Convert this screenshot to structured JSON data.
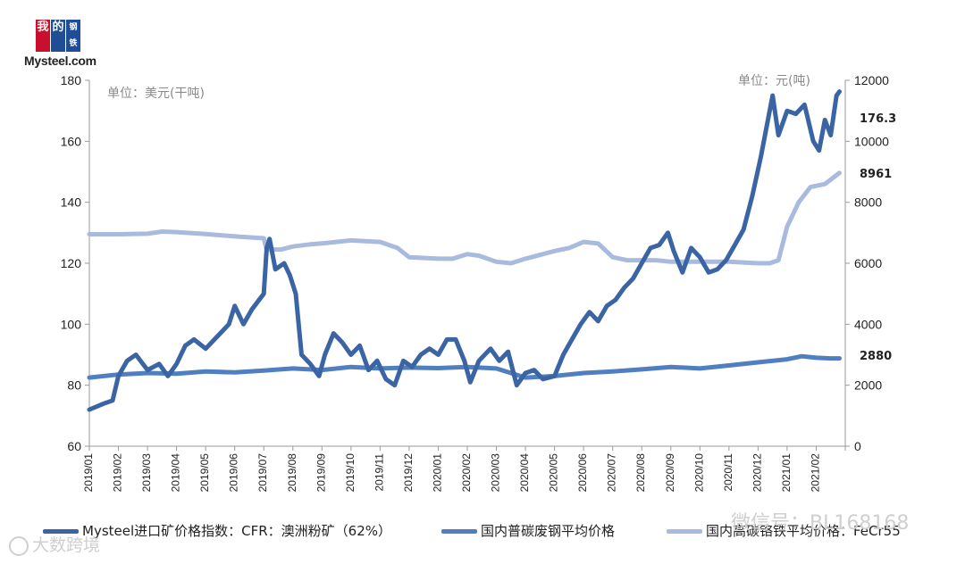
{
  "logo": {
    "chars": [
      "我",
      "的",
      "钢铁"
    ],
    "brand": "Mysteel.com"
  },
  "units": {
    "left": "单位：美元(干吨)",
    "right": "单位：元(吨)"
  },
  "end_labels": {
    "iron_ore": "176.3",
    "scrap": "2880",
    "high_carbon": "8961"
  },
  "legend": [
    {
      "label": "Mysteel进口矿价格指数：CFR：澳洲粉矿（62%）",
      "color": "#3a64a3"
    },
    {
      "label": "国内普碳废钢平均价格",
      "color": "#4f7fc1"
    },
    {
      "label": "国内高碳铬铁平均价格：FeCr55",
      "color": "#a9badf"
    }
  ],
  "watermarks": {
    "right": "微信号：BL168168",
    "left": "大数跨境"
  },
  "chart_data": {
    "type": "line",
    "x": [
      "2019/01",
      "2019/02",
      "2019/03",
      "2019/04",
      "2019/05",
      "2019/06",
      "2019/07",
      "2019/08",
      "2019/09",
      "2019/10",
      "2019/11",
      "2019/12",
      "2020/01",
      "2020/02",
      "2020/03",
      "2020/04",
      "2020/05",
      "2020/06",
      "2020/07",
      "2020/08",
      "2020/09",
      "2020/10",
      "2020/11",
      "2020/12",
      "2021/01",
      "2021/02"
    ],
    "y_left": {
      "ylim": [
        60,
        180
      ],
      "ticks": [
        60,
        80,
        100,
        120,
        140,
        160,
        180
      ],
      "label": "单位：美元(干吨)"
    },
    "y_right": {
      "ylim": [
        0,
        12000
      ],
      "ticks": [
        0,
        2000,
        4000,
        6000,
        8000,
        10000,
        12000
      ],
      "label": "单位：元(吨)"
    },
    "series": [
      {
        "name": "国内高碳铬铁平均价格：FeCr55",
        "axis": "right",
        "color": "#a9badf",
        "points": [
          [
            0,
            6950
          ],
          [
            1,
            6950
          ],
          [
            2,
            6970
          ],
          [
            2.5,
            7040
          ],
          [
            3,
            7020
          ],
          [
            4,
            6960
          ],
          [
            5,
            6880
          ],
          [
            6,
            6820
          ],
          [
            6.1,
            6450
          ],
          [
            6.6,
            6450
          ],
          [
            7,
            6550
          ],
          [
            7.6,
            6620
          ],
          [
            8,
            6650
          ],
          [
            9,
            6750
          ],
          [
            10,
            6700
          ],
          [
            10.6,
            6500
          ],
          [
            11,
            6200
          ],
          [
            12,
            6150
          ],
          [
            12.5,
            6150
          ],
          [
            13,
            6300
          ],
          [
            13.4,
            6250
          ],
          [
            14,
            6050
          ],
          [
            14.5,
            6000
          ],
          [
            15,
            6150
          ],
          [
            16,
            6400
          ],
          [
            16.5,
            6500
          ],
          [
            17,
            6700
          ],
          [
            17.5,
            6650
          ],
          [
            18,
            6200
          ],
          [
            18.5,
            6100
          ],
          [
            19,
            6100
          ],
          [
            19.5,
            6100
          ],
          [
            20,
            6050
          ],
          [
            21,
            6050
          ],
          [
            22,
            6050
          ],
          [
            23,
            6000
          ],
          [
            23.4,
            6000
          ],
          [
            23.7,
            6100
          ],
          [
            24,
            7200
          ],
          [
            24.4,
            8000
          ],
          [
            24.8,
            8500
          ],
          [
            25.3,
            8600
          ],
          [
            25.8,
            8961
          ]
        ]
      },
      {
        "name": "国内普碳废钢平均价格",
        "axis": "right",
        "color": "#4f7fc1",
        "points": [
          [
            0,
            2250
          ],
          [
            1,
            2350
          ],
          [
            2,
            2400
          ],
          [
            3,
            2380
          ],
          [
            4,
            2450
          ],
          [
            5,
            2420
          ],
          [
            6,
            2480
          ],
          [
            7,
            2550
          ],
          [
            8,
            2500
          ],
          [
            9,
            2600
          ],
          [
            10,
            2550
          ],
          [
            11,
            2580
          ],
          [
            12,
            2560
          ],
          [
            13,
            2600
          ],
          [
            14,
            2550
          ],
          [
            15,
            2250
          ],
          [
            16,
            2300
          ],
          [
            17,
            2400
          ],
          [
            18,
            2450
          ],
          [
            19,
            2520
          ],
          [
            20,
            2600
          ],
          [
            21,
            2550
          ],
          [
            22,
            2650
          ],
          [
            23,
            2750
          ],
          [
            24,
            2850
          ],
          [
            24.5,
            2950
          ],
          [
            25,
            2900
          ],
          [
            25.5,
            2880
          ],
          [
            25.8,
            2880
          ]
        ]
      },
      {
        "name": "Mysteel进口矿价格指数：CFR：澳洲粉矿（62%）",
        "axis": "left",
        "color": "#3a64a3",
        "points": [
          [
            0,
            72
          ],
          [
            0.5,
            74
          ],
          [
            0.8,
            75
          ],
          [
            1,
            83
          ],
          [
            1.3,
            88
          ],
          [
            1.6,
            90
          ],
          [
            2,
            85
          ],
          [
            2.4,
            87
          ],
          [
            2.7,
            83
          ],
          [
            3,
            87
          ],
          [
            3.3,
            93
          ],
          [
            3.6,
            95
          ],
          [
            4,
            92
          ],
          [
            4.4,
            96
          ],
          [
            4.8,
            100
          ],
          [
            5,
            106
          ],
          [
            5.3,
            100
          ],
          [
            5.6,
            105
          ],
          [
            6,
            110
          ],
          [
            6.1,
            125
          ],
          [
            6.2,
            128
          ],
          [
            6.4,
            118
          ],
          [
            6.7,
            120
          ],
          [
            6.9,
            116
          ],
          [
            7.1,
            110
          ],
          [
            7.3,
            90
          ],
          [
            7.6,
            87
          ],
          [
            7.9,
            83
          ],
          [
            8.1,
            90
          ],
          [
            8.4,
            97
          ],
          [
            8.7,
            94
          ],
          [
            9,
            90
          ],
          [
            9.3,
            93
          ],
          [
            9.6,
            85
          ],
          [
            9.9,
            88
          ],
          [
            10.2,
            82
          ],
          [
            10.5,
            80
          ],
          [
            10.8,
            88
          ],
          [
            11.1,
            86
          ],
          [
            11.4,
            90
          ],
          [
            11.7,
            92
          ],
          [
            12,
            90
          ],
          [
            12.3,
            95
          ],
          [
            12.6,
            95
          ],
          [
            12.9,
            88
          ],
          [
            13.1,
            81
          ],
          [
            13.4,
            88
          ],
          [
            13.8,
            92
          ],
          [
            14.1,
            88
          ],
          [
            14.4,
            91
          ],
          [
            14.7,
            80
          ],
          [
            15,
            84
          ],
          [
            15.3,
            85
          ],
          [
            15.6,
            82
          ],
          [
            16,
            83
          ],
          [
            16.3,
            90
          ],
          [
            16.6,
            95
          ],
          [
            16.9,
            100
          ],
          [
            17.2,
            104
          ],
          [
            17.5,
            101
          ],
          [
            17.8,
            106
          ],
          [
            18.1,
            108
          ],
          [
            18.4,
            112
          ],
          [
            18.7,
            115
          ],
          [
            19,
            120
          ],
          [
            19.3,
            125
          ],
          [
            19.6,
            126
          ],
          [
            19.9,
            130
          ],
          [
            20.1,
            124
          ],
          [
            20.4,
            117
          ],
          [
            20.7,
            125
          ],
          [
            21,
            122
          ],
          [
            21.3,
            117
          ],
          [
            21.6,
            118
          ],
          [
            21.9,
            121
          ],
          [
            22.2,
            126
          ],
          [
            22.5,
            131
          ],
          [
            22.8,
            142
          ],
          [
            23.1,
            155
          ],
          [
            23.3,
            165
          ],
          [
            23.5,
            175
          ],
          [
            23.7,
            162
          ],
          [
            24,
            170
          ],
          [
            24.3,
            169
          ],
          [
            24.6,
            172
          ],
          [
            24.9,
            160
          ],
          [
            25.1,
            157
          ],
          [
            25.3,
            167
          ],
          [
            25.5,
            162
          ],
          [
            25.7,
            175
          ],
          [
            25.8,
            176.3
          ]
        ]
      }
    ]
  }
}
